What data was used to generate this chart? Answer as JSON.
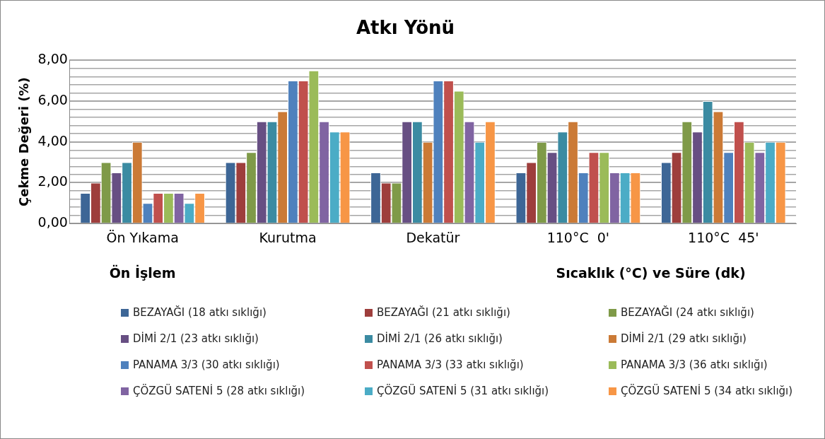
{
  "chart_data": {
    "type": "bar",
    "title": "Atkı Yönü",
    "ylabel": "Çekme Değeri (%)",
    "annotations": [
      "Ön İşlem",
      "Sıcaklık (°C) ve Süre (dk)"
    ],
    "categories": [
      "Ön Yıkama",
      "Kurutma",
      "Dekatür",
      "110°C  0'",
      "110°C  45'"
    ],
    "series": [
      {
        "name": "BEZAYAĞI (18 atkı sıklığı)",
        "color": "#3d6696",
        "values": [
          1.5,
          3,
          2.5,
          2.5,
          3
        ]
      },
      {
        "name": "BEZAYAĞI (21 atkı sıklığı)",
        "color": "#9e3e3c",
        "values": [
          2,
          3,
          2,
          3,
          3.5
        ]
      },
      {
        "name": "BEZAYAĞI (24 atkı sıklığı)",
        "color": "#7f9a48",
        "values": [
          3,
          3.5,
          2,
          4,
          5
        ]
      },
      {
        "name": "DİMİ 2/1 (23 atkı sıklığı)",
        "color": "#674f83",
        "values": [
          2.5,
          5,
          5,
          3.5,
          4.5
        ]
      },
      {
        "name": "DİMİ 2/1 (26 atkı sıklığı)",
        "color": "#3b8ba2",
        "values": [
          3,
          5,
          5,
          4.5,
          6
        ]
      },
      {
        "name": "DİMİ 2/1 (29 atkı sıklığı)",
        "color": "#cb7a36",
        "values": [
          4,
          5.5,
          4,
          5,
          5.5
        ]
      },
      {
        "name": "PANAMA 3/3 (30 atkı sıklığı)",
        "color": "#4f81bd",
        "values": [
          1,
          7,
          7,
          2.5,
          3.5
        ]
      },
      {
        "name": "PANAMA 3/3 (33 atkı sıklığı)",
        "color": "#c0504d",
        "values": [
          1.5,
          7,
          7,
          3.5,
          5
        ]
      },
      {
        "name": "PANAMA 3/3 (36 atkı sıklığı)",
        "color": "#9bbb59",
        "values": [
          1.5,
          7.5,
          6.5,
          3.5,
          4
        ]
      },
      {
        "name": "ÇÖZGÜ SATENİ 5 (28 atkı sıklığı)",
        "color": "#8064a2",
        "values": [
          1.5,
          5,
          5,
          2.5,
          3.5
        ]
      },
      {
        "name": "ÇÖZGÜ SATENİ 5 (31 atkı sıklığı)",
        "color": "#4bacc6",
        "values": [
          1,
          4.5,
          4,
          2.5,
          4
        ]
      },
      {
        "name": "ÇÖZGÜ SATENİ 5 (34 atkı sıklığı)",
        "color": "#f79646",
        "values": [
          1.5,
          4.5,
          5,
          2.5,
          4
        ]
      }
    ],
    "ylim": [
      0,
      8
    ],
    "yticks": [
      {
        "value": 0,
        "label": "0,00"
      },
      {
        "value": 0.4,
        "label": null
      },
      {
        "value": 0.8,
        "label": null
      },
      {
        "value": 1.2,
        "label": null
      },
      {
        "value": 1.6,
        "label": null
      },
      {
        "value": 2,
        "label": "2,00"
      },
      {
        "value": 2.4,
        "label": null
      },
      {
        "value": 2.8,
        "label": null
      },
      {
        "value": 3.2,
        "label": null
      },
      {
        "value": 3.6,
        "label": null
      },
      {
        "value": 4,
        "label": "4,00"
      },
      {
        "value": 4.4,
        "label": null
      },
      {
        "value": 4.8,
        "label": null
      },
      {
        "value": 5.2,
        "label": null
      },
      {
        "value": 5.6,
        "label": null
      },
      {
        "value": 6,
        "label": "6,00"
      },
      {
        "value": 6.4,
        "label": null
      },
      {
        "value": 6.8,
        "label": null
      },
      {
        "value": 7.2,
        "label": null
      },
      {
        "value": 7.6,
        "label": null
      },
      {
        "value": 8,
        "label": "8,00"
      }
    ],
    "grid": "y",
    "legend": "bottom"
  }
}
